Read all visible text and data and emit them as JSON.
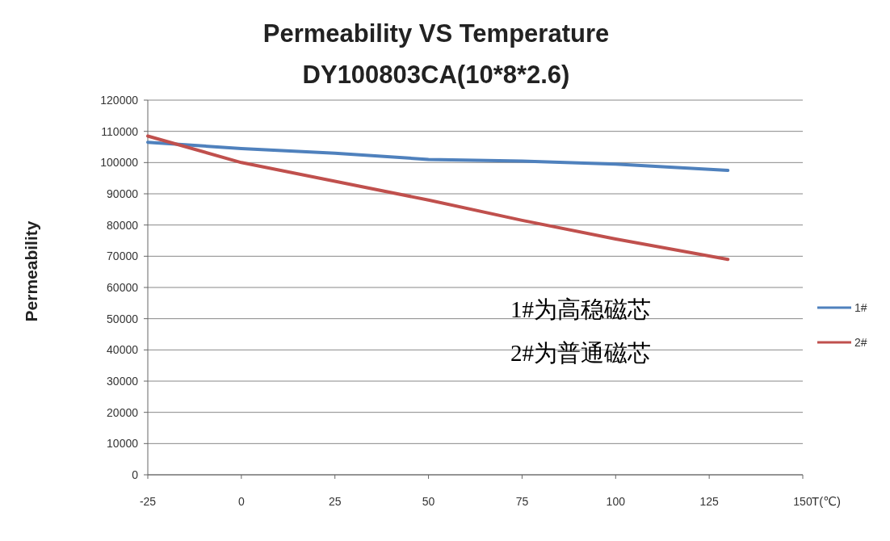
{
  "chart_data": {
    "type": "line",
    "title": "Permeability VS Temperature",
    "subtitle": "DY100803CA(10*8*2.6)",
    "xlabel": "T(℃)",
    "ylabel": "Permeability",
    "x": [
      -25,
      0,
      25,
      50,
      75,
      100,
      130
    ],
    "series": [
      {
        "name": "1#",
        "color": "#4f81bd",
        "values": [
          106500,
          104500,
          103000,
          101000,
          100500,
          99500,
          97500
        ]
      },
      {
        "name": "2#",
        "color": "#c0504d",
        "values": [
          108500,
          100000,
          94000,
          88000,
          81500,
          75500,
          69000
        ]
      }
    ],
    "xlim": [
      -25,
      150
    ],
    "xticks": [
      -25,
      0,
      25,
      50,
      75,
      100,
      125,
      150
    ],
    "ylim": [
      0,
      120000
    ],
    "yticks": [
      0,
      10000,
      20000,
      30000,
      40000,
      50000,
      60000,
      70000,
      80000,
      90000,
      100000,
      110000,
      120000
    ],
    "grid": "y",
    "legend": "right",
    "marker": "none",
    "line_style": "solid",
    "annotations": [
      "1#为高稳磁芯",
      "2#为普通磁芯"
    ]
  }
}
